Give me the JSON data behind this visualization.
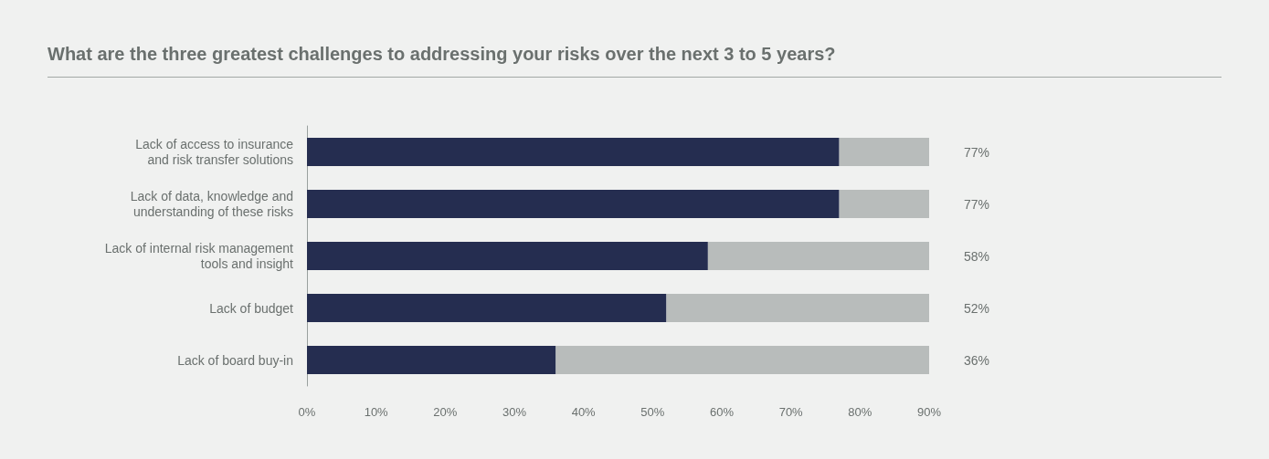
{
  "chart_data": {
    "type": "bar",
    "orientation": "horizontal",
    "stacked": true,
    "title": "What are the three greatest challenges to addressing your risks over the next 3 to 5 years?",
    "categories": [
      "Lack of access to insurance\nand risk transfer solutions",
      "Lack of data, knowledge and\nunderstanding of these risks",
      "Lack of internal risk management\ntools and insight",
      "Lack of budget",
      "Lack of board buy-in"
    ],
    "series": [
      {
        "color": "#252d50",
        "values": [
          77,
          77,
          58,
          52,
          36
        ],
        "value_labels": [
          "77%",
          "77%",
          "58%",
          "52%",
          "36%"
        ]
      },
      {
        "color": "#b8bcbb",
        "values": [
          13,
          13,
          32,
          38,
          54
        ]
      }
    ],
    "xlim": [
      0,
      90
    ],
    "xticks": [
      {
        "value": 0,
        "label": "0%"
      },
      {
        "value": 10,
        "label": "10%"
      },
      {
        "value": 20,
        "label": "20%"
      },
      {
        "value": 30,
        "label": "30%"
      },
      {
        "value": 40,
        "label": "40%"
      },
      {
        "value": 50,
        "label": "50%"
      },
      {
        "value": 60,
        "label": "60%"
      },
      {
        "value": 70,
        "label": "70%"
      },
      {
        "value": 80,
        "label": "80%"
      },
      {
        "value": 90,
        "label": "90%"
      }
    ],
    "grid": false
  }
}
